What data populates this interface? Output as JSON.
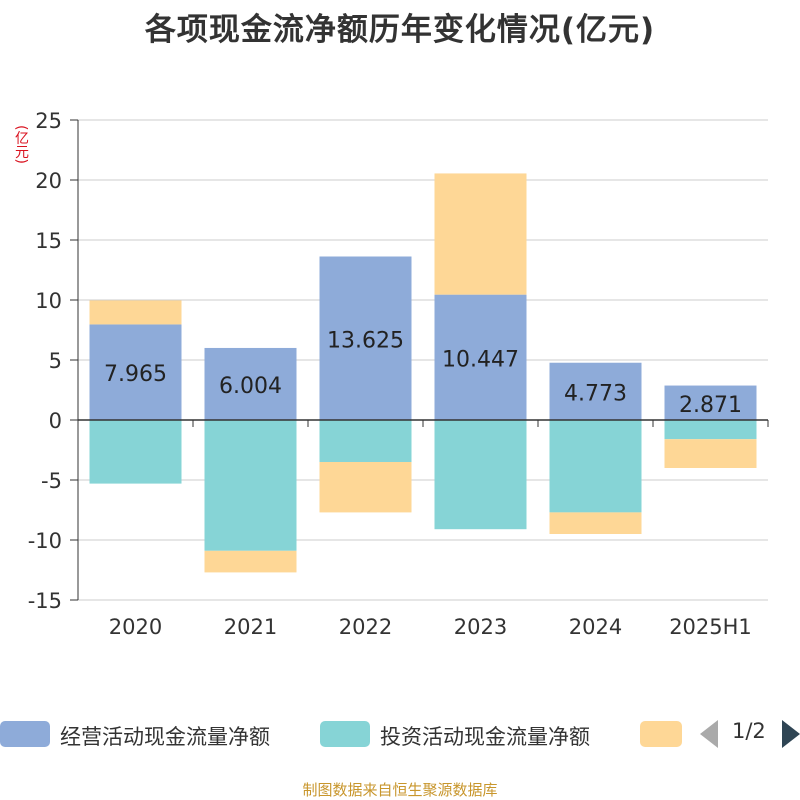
{
  "title": "各项现金流净额历年变化情况(亿元)",
  "unit": "(亿元)",
  "source": "制图数据来自恒生聚源数据库",
  "colors": {
    "operating": "#8eabd9",
    "investing": "#86d4d6",
    "financing": "#fed796",
    "axis": "#333333",
    "grid": "#cccccc"
  },
  "legend": {
    "items": [
      {
        "label": "经营活动现金流量净额",
        "color": "#8eabd9"
      },
      {
        "label": "投资活动现金流量净额",
        "color": "#86d4d6"
      },
      {
        "label": "",
        "color": "#fed796"
      }
    ],
    "page": "1/2"
  },
  "chart_data": {
    "type": "bar",
    "stacked": true,
    "categories": [
      "2020",
      "2021",
      "2022",
      "2023",
      "2024",
      "2025H1"
    ],
    "ylim": [
      -15,
      25
    ],
    "yticks": [
      25,
      20,
      15,
      10,
      5,
      0,
      -5,
      -10,
      -15
    ],
    "grid": true,
    "legend_position": "bottom",
    "series": [
      {
        "name": "经营活动现金流量净额",
        "values": [
          7.965,
          6.004,
          13.625,
          10.447,
          4.773,
          2.871
        ],
        "show_labels": true
      },
      {
        "name": "投资活动现金流量净额",
        "values": [
          -5.3,
          -10.9,
          -3.5,
          -9.1,
          -7.7,
          -1.6
        ],
        "show_labels": false
      },
      {
        "values": [
          2.0,
          -1.8,
          -4.2,
          10.1,
          -1.8,
          -2.4
        ],
        "show_labels": false
      }
    ],
    "data_labels": [
      "7.965",
      "6.004",
      "13.625",
      "10.447",
      "4.773",
      "2.871"
    ]
  }
}
